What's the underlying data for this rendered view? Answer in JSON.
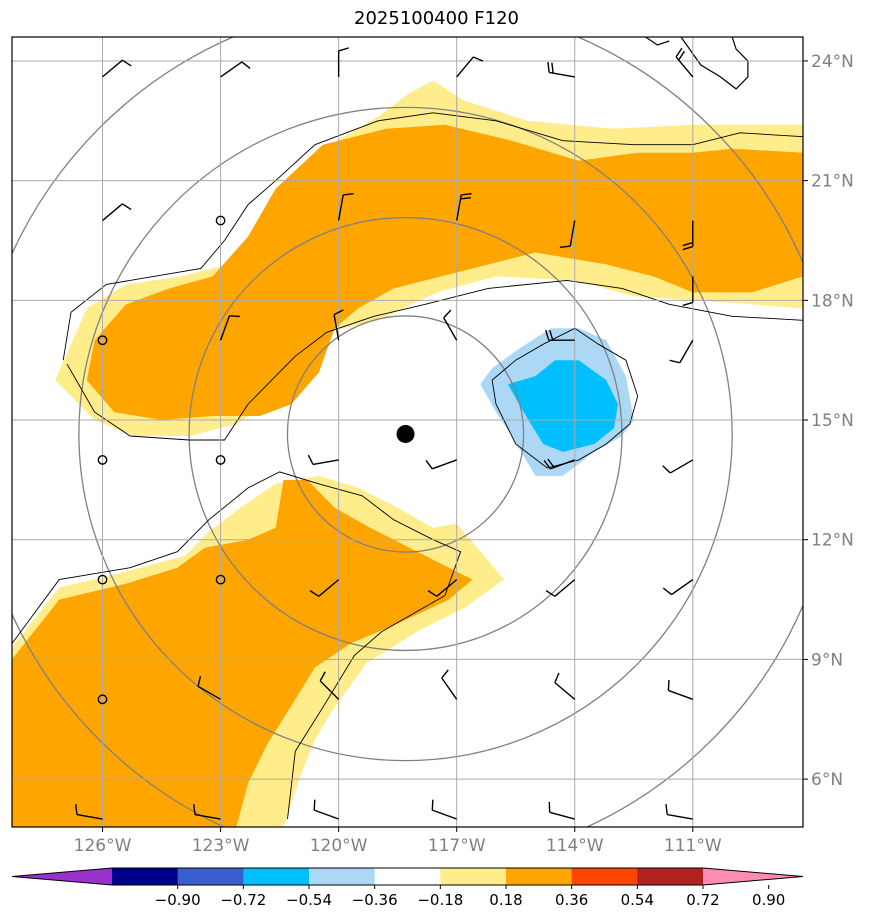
{
  "title": "2025100400 F120",
  "map": {
    "lon_min": -128.3,
    "lon_max": -108.2,
    "lat_min": 4.8,
    "lat_max": 24.6,
    "lon_ticks": [
      -126,
      -123,
      -120,
      -117,
      -114,
      -111
    ],
    "lon_tick_labels": [
      "126°W",
      "123°W",
      "120°W",
      "117°W",
      "114°W",
      "111°W"
    ],
    "lat_ticks": [
      6,
      9,
      12,
      15,
      18,
      21,
      24
    ],
    "lat_tick_labels": [
      "6°N",
      "9°N",
      "12°N",
      "15°N",
      "18°N",
      "21°N",
      "24°N"
    ],
    "storm_center": {
      "lon": -118.3,
      "lat": 14.65
    },
    "range_rings_deg": [
      3,
      5.5,
      8.3,
      11
    ],
    "gridline_color": "#aaaaaa",
    "tick_label_color": "#808080"
  },
  "colorbar": {
    "colors": [
      "#9932cc",
      "#00008b",
      "#3a5fcd",
      "#00bfff",
      "#add8f5",
      "#ffffff",
      "#ffec8b",
      "#ffa500",
      "#ff4500",
      "#b22222",
      "#ff8cb4"
    ],
    "tick_labels": [
      "−0.90",
      "−0.72",
      "−0.54",
      "−0.36",
      "−0.18",
      "0.18",
      "0.36",
      "0.54",
      "0.72",
      "0.90"
    ]
  },
  "chart_data": {
    "type": "heatmap",
    "fill_levels": {
      "light_yellow": "0.18 to 0.36",
      "orange": "0.36 to 0.54",
      "light_blue": "-0.36 to -0.18",
      "deep_sky_blue": "-0.54 to -0.36"
    },
    "regions": [
      {
        "name": "north-positive-band-outer",
        "color": "#ffec8b",
        "points": [
          [
            -127.2,
            16.0
          ],
          [
            -126.4,
            17.8
          ],
          [
            -125.4,
            18.4
          ],
          [
            -124.0,
            18.6
          ],
          [
            -122.8,
            18.9
          ],
          [
            -122.0,
            19.7
          ],
          [
            -121.3,
            20.8
          ],
          [
            -120.4,
            21.8
          ],
          [
            -119.0,
            22.6
          ],
          [
            -118.2,
            23.2
          ],
          [
            -117.6,
            23.5
          ],
          [
            -116.8,
            23.0
          ],
          [
            -115.2,
            22.5
          ],
          [
            -113.0,
            22.3
          ],
          [
            -111.0,
            22.4
          ],
          [
            -109.5,
            22.4
          ],
          [
            -108.2,
            22.4
          ],
          [
            -108.2,
            17.8
          ],
          [
            -109.5,
            17.9
          ],
          [
            -111.0,
            18.0
          ],
          [
            -112.5,
            18.1
          ],
          [
            -114.0,
            18.5
          ],
          [
            -116.0,
            18.6
          ],
          [
            -117.5,
            18.2
          ],
          [
            -119.0,
            17.5
          ],
          [
            -120.3,
            17.2
          ],
          [
            -121.0,
            16.4
          ],
          [
            -121.8,
            15.4
          ],
          [
            -122.6,
            14.9
          ],
          [
            -123.8,
            14.6
          ],
          [
            -125.2,
            14.6
          ],
          [
            -126.2,
            15.0
          ]
        ]
      },
      {
        "name": "north-positive-band-inner",
        "color": "#ffa500",
        "points": [
          [
            -126.4,
            16.0
          ],
          [
            -126.2,
            17.0
          ],
          [
            -125.4,
            17.9
          ],
          [
            -124.3,
            18.3
          ],
          [
            -123.2,
            18.6
          ],
          [
            -122.3,
            19.6
          ],
          [
            -121.6,
            20.8
          ],
          [
            -120.4,
            21.9
          ],
          [
            -118.8,
            22.3
          ],
          [
            -117.3,
            22.4
          ],
          [
            -115.6,
            22.0
          ],
          [
            -113.9,
            21.5
          ],
          [
            -112.4,
            21.7
          ],
          [
            -111.0,
            21.7
          ],
          [
            -110.0,
            21.8
          ],
          [
            -108.2,
            21.7
          ],
          [
            -108.2,
            18.6
          ],
          [
            -109.5,
            18.2
          ],
          [
            -111.0,
            18.2
          ],
          [
            -112.0,
            18.6
          ],
          [
            -113.2,
            18.9
          ],
          [
            -115.0,
            19.2
          ],
          [
            -117.0,
            18.7
          ],
          [
            -118.6,
            18.3
          ],
          [
            -119.5,
            17.8
          ],
          [
            -120.1,
            17.3
          ],
          [
            -120.5,
            16.2
          ],
          [
            -121.2,
            15.4
          ],
          [
            -122.0,
            15.1
          ],
          [
            -123.2,
            15.1
          ],
          [
            -124.5,
            15.0
          ],
          [
            -125.7,
            15.2
          ]
        ]
      },
      {
        "name": "south-positive-band-outer",
        "color": "#ffec8b",
        "points": [
          [
            -128.3,
            9.3
          ],
          [
            -127.1,
            10.8
          ],
          [
            -125.4,
            11.2
          ],
          [
            -123.9,
            11.6
          ],
          [
            -123.3,
            12.2
          ],
          [
            -122.5,
            12.8
          ],
          [
            -121.6,
            13.4
          ],
          [
            -120.5,
            13.6
          ],
          [
            -119.5,
            13.3
          ],
          [
            -118.5,
            12.8
          ],
          [
            -117.6,
            12.3
          ],
          [
            -117.0,
            12.4
          ],
          [
            -116.3,
            11.6
          ],
          [
            -115.8,
            11.0
          ],
          [
            -116.8,
            10.3
          ],
          [
            -118.0,
            9.7
          ],
          [
            -119.3,
            8.9
          ],
          [
            -120.1,
            7.8
          ],
          [
            -120.6,
            7.0
          ],
          [
            -121.0,
            6.0
          ],
          [
            -121.4,
            4.8
          ],
          [
            -128.3,
            4.8
          ]
        ]
      },
      {
        "name": "south-positive-band-inner",
        "color": "#ffa500",
        "points": [
          [
            -128.3,
            9.0
          ],
          [
            -127.1,
            10.5
          ],
          [
            -125.4,
            10.9
          ],
          [
            -124.1,
            11.3
          ],
          [
            -123.4,
            11.8
          ],
          [
            -122.3,
            12.0
          ],
          [
            -121.6,
            12.3
          ],
          [
            -121.4,
            13.5
          ],
          [
            -120.8,
            13.5
          ],
          [
            -120.1,
            12.8
          ],
          [
            -119.2,
            12.3
          ],
          [
            -118.4,
            11.9
          ],
          [
            -117.6,
            11.5
          ],
          [
            -116.6,
            11.0
          ],
          [
            -117.2,
            10.5
          ],
          [
            -118.5,
            9.9
          ],
          [
            -119.7,
            9.4
          ],
          [
            -120.6,
            8.8
          ],
          [
            -121.1,
            8.0
          ],
          [
            -121.8,
            6.9
          ],
          [
            -122.3,
            5.9
          ],
          [
            -122.6,
            4.8
          ],
          [
            -128.3,
            4.8
          ]
        ]
      },
      {
        "name": "negative-blob-outer",
        "color": "#add8f5",
        "points": [
          [
            -116.4,
            15.9
          ],
          [
            -116.1,
            16.3
          ],
          [
            -115.4,
            16.8
          ],
          [
            -114.6,
            17.3
          ],
          [
            -113.9,
            17.3
          ],
          [
            -113.2,
            17.0
          ],
          [
            -112.7,
            16.1
          ],
          [
            -112.5,
            15.0
          ],
          [
            -112.8,
            14.6
          ],
          [
            -113.5,
            14.2
          ],
          [
            -114.3,
            13.6
          ],
          [
            -115.0,
            13.6
          ],
          [
            -115.6,
            14.6
          ],
          [
            -116.0,
            15.2
          ]
        ]
      },
      {
        "name": "negative-blob-inner",
        "color": "#00bfff",
        "points": [
          [
            -115.7,
            15.9
          ],
          [
            -115.0,
            16.1
          ],
          [
            -114.5,
            16.5
          ],
          [
            -113.9,
            16.5
          ],
          [
            -113.2,
            16.0
          ],
          [
            -112.9,
            15.4
          ],
          [
            -113.0,
            14.8
          ],
          [
            -113.5,
            14.4
          ],
          [
            -114.3,
            14.2
          ],
          [
            -114.8,
            14.4
          ],
          [
            -115.3,
            15.2
          ]
        ]
      }
    ],
    "contour_lines": [
      {
        "name": "north-contour",
        "points": [
          [
            -127.0,
            16.5
          ],
          [
            -126.8,
            17.7
          ],
          [
            -125.9,
            18.4
          ],
          [
            -124.7,
            18.6
          ],
          [
            -123.5,
            18.8
          ],
          [
            -122.9,
            19.5
          ],
          [
            -122.3,
            20.4
          ],
          [
            -121.6,
            21.0
          ],
          [
            -120.6,
            21.9
          ],
          [
            -119.0,
            22.5
          ],
          [
            -117.6,
            22.7
          ],
          [
            -116.0,
            22.5
          ],
          [
            -114.3,
            22.0
          ],
          [
            -112.5,
            21.9
          ],
          [
            -111.0,
            21.9
          ],
          [
            -109.8,
            22.2
          ],
          [
            -108.2,
            22.1
          ]
        ]
      },
      {
        "name": "north-contour-south-edge",
        "points": [
          [
            -126.9,
            16.4
          ],
          [
            -126.2,
            15.2
          ],
          [
            -125.3,
            14.6
          ],
          [
            -123.8,
            14.5
          ],
          [
            -122.9,
            14.5
          ],
          [
            -122.3,
            15.4
          ],
          [
            -121.7,
            16.0
          ],
          [
            -121.1,
            16.6
          ],
          [
            -120.3,
            17.2
          ],
          [
            -119.1,
            17.6
          ],
          [
            -117.8,
            17.9
          ],
          [
            -116.2,
            18.3
          ],
          [
            -114.2,
            18.5
          ],
          [
            -112.8,
            18.3
          ],
          [
            -111.6,
            17.9
          ],
          [
            -110.0,
            17.6
          ],
          [
            -108.2,
            17.5
          ]
        ]
      },
      {
        "name": "south-contour",
        "points": [
          [
            -128.3,
            9.4
          ],
          [
            -127.1,
            11.0
          ],
          [
            -125.3,
            11.3
          ],
          [
            -124.1,
            11.7
          ],
          [
            -123.3,
            12.5
          ],
          [
            -122.3,
            13.3
          ],
          [
            -121.5,
            13.7
          ],
          [
            -120.5,
            13.4
          ],
          [
            -119.4,
            13.1
          ],
          [
            -118.6,
            12.5
          ],
          [
            -117.6,
            12.0
          ],
          [
            -116.9,
            11.7
          ],
          [
            -117.3,
            10.6
          ],
          [
            -118.9,
            9.7
          ],
          [
            -119.6,
            9.1
          ],
          [
            -120.4,
            7.8
          ],
          [
            -121.1,
            6.7
          ],
          [
            -121.3,
            5.0
          ]
        ]
      },
      {
        "name": "negative-blob-contour",
        "points": [
          [
            -116.1,
            16.0
          ],
          [
            -115.5,
            16.5
          ],
          [
            -114.8,
            16.9
          ],
          [
            -114.0,
            17.3
          ],
          [
            -113.4,
            16.9
          ],
          [
            -112.7,
            16.5
          ],
          [
            -112.4,
            15.6
          ],
          [
            -112.6,
            14.9
          ],
          [
            -113.2,
            14.4
          ],
          [
            -113.9,
            14.0
          ],
          [
            -114.7,
            13.8
          ],
          [
            -115.5,
            14.4
          ],
          [
            -116.0,
            15.4
          ],
          [
            -116.1,
            16.0
          ]
        ]
      }
    ],
    "coastlines": [
      {
        "name": "baja-coast",
        "points": [
          [
            -111.3,
            24.6
          ],
          [
            -110.8,
            23.9
          ],
          [
            -110.3,
            23.6
          ],
          [
            -109.9,
            23.3
          ],
          [
            -109.6,
            23.6
          ],
          [
            -109.6,
            24.0
          ],
          [
            -109.9,
            24.3
          ],
          [
            -110.0,
            24.6
          ]
        ]
      },
      {
        "name": "north-coast-fragment",
        "points": [
          [
            -112.2,
            24.6
          ],
          [
            -111.9,
            24.4
          ],
          [
            -111.6,
            24.5
          ]
        ]
      }
    ],
    "station_circles": [
      [
        -126.0,
        17.0
      ],
      [
        -123.0,
        20.0
      ],
      [
        -126.0,
        14.0
      ],
      [
        -123.0,
        14.0
      ],
      [
        -126.0,
        11.0
      ],
      [
        -123.0,
        11.0
      ],
      [
        -126.0,
        8.0
      ]
    ],
    "wind_barbs": [
      {
        "lon": -126.0,
        "lat": 23.6,
        "dir": 50,
        "barbs": 1
      },
      {
        "lon": -123.0,
        "lat": 23.6,
        "dir": 55,
        "barbs": 1
      },
      {
        "lon": -120.0,
        "lat": 23.6,
        "dir": 0,
        "barbs": 1
      },
      {
        "lon": -117.0,
        "lat": 23.6,
        "dir": 40,
        "barbs": 1
      },
      {
        "lon": -114.0,
        "lat": 23.6,
        "dir": 280,
        "barbs": 2
      },
      {
        "lon": -111.0,
        "lat": 23.6,
        "dir": 320,
        "barbs": 2
      },
      {
        "lon": -108.2,
        "lat": 23.6,
        "dir": 20,
        "barbs": 1
      },
      {
        "lon": -126.0,
        "lat": 20.0,
        "dir": 50,
        "barbs": 1
      },
      {
        "lon": -120.0,
        "lat": 20.0,
        "dir": 10,
        "barbs": 1
      },
      {
        "lon": -117.0,
        "lat": 20.0,
        "dir": 10,
        "barbs": 2
      },
      {
        "lon": -114.0,
        "lat": 20.0,
        "dir": 190,
        "barbs": 1
      },
      {
        "lon": -111.0,
        "lat": 20.0,
        "dir": 180,
        "barbs": 2
      },
      {
        "lon": -111.0,
        "lat": 18.6,
        "dir": 180,
        "barbs": 1
      },
      {
        "lon": -123.0,
        "lat": 17.0,
        "dir": 20,
        "barbs": 1
      },
      {
        "lon": -120.0,
        "lat": 17.0,
        "dir": 350,
        "barbs": 1
      },
      {
        "lon": -117.0,
        "lat": 17.0,
        "dir": 330,
        "barbs": 1
      },
      {
        "lon": -114.0,
        "lat": 17.0,
        "dir": 270,
        "barbs": 2
      },
      {
        "lon": -111.0,
        "lat": 17.0,
        "dir": 210,
        "barbs": 1
      },
      {
        "lon": -120.0,
        "lat": 14.0,
        "dir": 260,
        "barbs": 1
      },
      {
        "lon": -117.0,
        "lat": 14.0,
        "dir": 250,
        "barbs": 1
      },
      {
        "lon": -114.0,
        "lat": 14.0,
        "dir": 250,
        "barbs": 2
      },
      {
        "lon": -111.0,
        "lat": 14.0,
        "dir": 240,
        "barbs": 1
      },
      {
        "lon": -120.0,
        "lat": 11.0,
        "dir": 230,
        "barbs": 1
      },
      {
        "lon": -117.0,
        "lat": 11.0,
        "dir": 230,
        "barbs": 1
      },
      {
        "lon": -114.0,
        "lat": 11.0,
        "dir": 230,
        "barbs": 1
      },
      {
        "lon": -111.0,
        "lat": 11.0,
        "dir": 235,
        "barbs": 1
      },
      {
        "lon": -123.0,
        "lat": 8.0,
        "dir": 300,
        "barbs": 1
      },
      {
        "lon": -120.0,
        "lat": 8.0,
        "dir": 315,
        "barbs": 1
      },
      {
        "lon": -117.0,
        "lat": 8.0,
        "dir": 325,
        "barbs": 1
      },
      {
        "lon": -114.0,
        "lat": 8.0,
        "dir": 310,
        "barbs": 1
      },
      {
        "lon": -111.0,
        "lat": 8.0,
        "dir": 290,
        "barbs": 1
      },
      {
        "lon": -126.0,
        "lat": 5.0,
        "dir": 280,
        "barbs": 1
      },
      {
        "lon": -123.0,
        "lat": 5.0,
        "dir": 280,
        "barbs": 1
      },
      {
        "lon": -120.0,
        "lat": 5.0,
        "dir": 290,
        "barbs": 1
      },
      {
        "lon": -117.0,
        "lat": 5.0,
        "dir": 290,
        "barbs": 1
      },
      {
        "lon": -114.0,
        "lat": 5.0,
        "dir": 285,
        "barbs": 1
      },
      {
        "lon": -111.0,
        "lat": 5.0,
        "dir": 280,
        "barbs": 1
      }
    ]
  }
}
